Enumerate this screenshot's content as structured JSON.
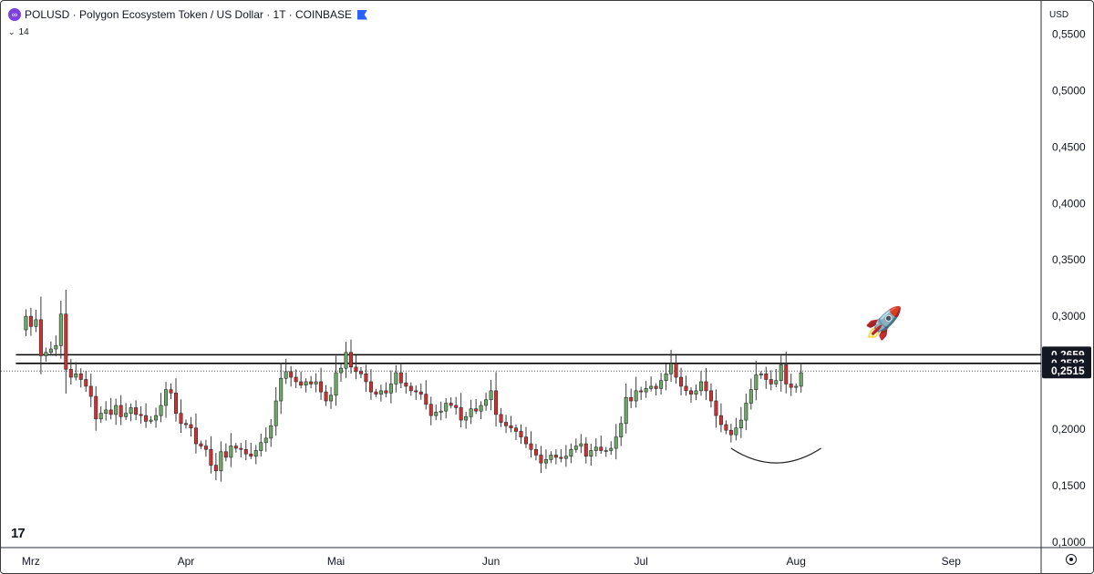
{
  "header": {
    "symbol_icon": "polygon-logo-icon",
    "title": "POLUSD · Polygon Ecosystem Token / US Dollar · 1T · COINBASE",
    "flag_icon": "flag-icon",
    "indicator_label": "14",
    "currency": "USD"
  },
  "colors": {
    "up": "#6aaa64",
    "down": "#d32f2f",
    "axis_text": "#131722",
    "line": "#000000"
  },
  "chart_data": {
    "type": "candlestick",
    "y_axis": {
      "ticks": [
        "0,5500",
        "0,5000",
        "0,4500",
        "0,4000",
        "0,3500",
        "0,3000",
        "0,2000",
        "0,1500",
        "0,1000"
      ],
      "tick_values": [
        0.55,
        0.5,
        0.45,
        0.4,
        0.35,
        0.3,
        0.2,
        0.15,
        0.1
      ],
      "range": [
        0.095,
        0.565
      ]
    },
    "x_axis": {
      "ticks": [
        "Mrz",
        "Apr",
        "Mai",
        "Jun",
        "Jul",
        "Aug",
        "Sep"
      ],
      "tick_days": [
        1,
        32,
        62,
        93,
        123,
        154,
        185
      ],
      "range_days": [
        -5,
        203
      ]
    },
    "price_labels": [
      {
        "text": "0,2659",
        "value": 0.2659,
        "style": "dark"
      },
      {
        "text": "0,2583",
        "value": 0.2583,
        "style": "dark"
      },
      {
        "text": "0,2515",
        "value": 0.2515,
        "style": "dark"
      }
    ],
    "horizontal_lines": [
      {
        "value": 0.2659,
        "style": "solid",
        "from_day": -2
      },
      {
        "value": 0.2583,
        "style": "solid",
        "from_day": -2
      },
      {
        "value": 0.2515,
        "style": "dotted",
        "from_day": -5
      }
    ],
    "closes": [
      0.3,
      0.291,
      0.297,
      0.265,
      0.268,
      0.271,
      0.274,
      0.302,
      0.253,
      0.246,
      0.249,
      0.244,
      0.238,
      0.229,
      0.209,
      0.214,
      0.217,
      0.213,
      0.221,
      0.211,
      0.214,
      0.219,
      0.213,
      0.212,
      0.207,
      0.208,
      0.212,
      0.221,
      0.235,
      0.232,
      0.214,
      0.205,
      0.204,
      0.201,
      0.187,
      0.185,
      0.182,
      0.168,
      0.163,
      0.18,
      0.175,
      0.185,
      0.183,
      0.182,
      0.178,
      0.176,
      0.181,
      0.188,
      0.192,
      0.203,
      0.225,
      0.245,
      0.251,
      0.246,
      0.242,
      0.239,
      0.242,
      0.24,
      0.242,
      0.233,
      0.225,
      0.23,
      0.25,
      0.254,
      0.268,
      0.255,
      0.251,
      0.249,
      0.242,
      0.233,
      0.231,
      0.234,
      0.232,
      0.24,
      0.25,
      0.241,
      0.238,
      0.234,
      0.233,
      0.231,
      0.222,
      0.212,
      0.215,
      0.216,
      0.223,
      0.221,
      0.219,
      0.208,
      0.211,
      0.218,
      0.216,
      0.221,
      0.226,
      0.234,
      0.213,
      0.206,
      0.203,
      0.201,
      0.198,
      0.193,
      0.187,
      0.182,
      0.177,
      0.17,
      0.173,
      0.177,
      0.175,
      0.174,
      0.176,
      0.182,
      0.185,
      0.187,
      0.176,
      0.181,
      0.184,
      0.181,
      0.181,
      0.183,
      0.193,
      0.205,
      0.228,
      0.225,
      0.234,
      0.233,
      0.236,
      0.238,
      0.236,
      0.243,
      0.249,
      0.258,
      0.246,
      0.238,
      0.234,
      0.231,
      0.234,
      0.242,
      0.234,
      0.225,
      0.212,
      0.204,
      0.199,
      0.195,
      0.201,
      0.208,
      0.223,
      0.235,
      0.248,
      0.249,
      0.244,
      0.24,
      0.243,
      0.257,
      0.24,
      0.237,
      0.238,
      0.25
    ],
    "last_price": 0.2515,
    "annotations": [
      {
        "type": "curve",
        "from": [
          141,
          0.183
        ],
        "control": [
          150,
          0.157
        ],
        "to": [
          159,
          0.183
        ]
      },
      {
        "type": "emoji",
        "emoji": "🚀",
        "day": 171.5,
        "value": 0.2945
      }
    ]
  }
}
